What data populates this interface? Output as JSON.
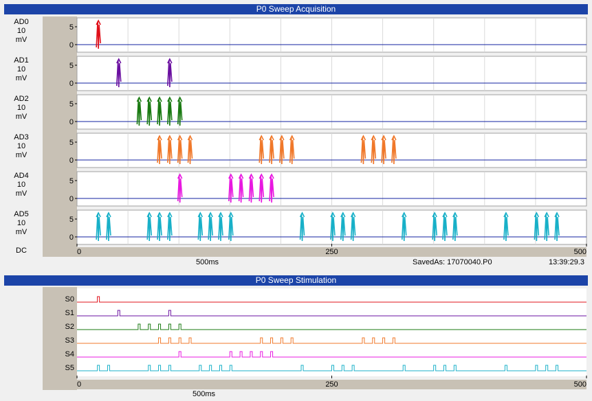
{
  "acquisition": {
    "title": "P0 Sweep Acquisition",
    "channels": [
      {
        "name": "AD0",
        "scale": "10",
        "unit": "mV",
        "color": "#e0101a"
      },
      {
        "name": "AD1",
        "scale": "10",
        "unit": "mV",
        "color": "#6a0fa0"
      },
      {
        "name": "AD2",
        "scale": "10",
        "unit": "mV",
        "color": "#1a7a12"
      },
      {
        "name": "AD3",
        "scale": "10",
        "unit": "mV",
        "color": "#f0782a"
      },
      {
        "name": "AD4",
        "scale": "10",
        "unit": "mV",
        "color": "#e818e0"
      },
      {
        "name": "AD5",
        "scale": "10",
        "unit": "mV",
        "color": "#18b0c8"
      }
    ],
    "coupling": "DC",
    "y_ticks": [
      "5",
      "0"
    ],
    "x_ticks": [
      "0",
      "250",
      "500"
    ],
    "timebase": "500",
    "timebase_unit": "ms",
    "saved_as": "SavedAs: 17070040.P0",
    "time": "13:39:29.3",
    "spikes": {
      "AD0": [
        21
      ],
      "AD1": [
        41,
        91
      ],
      "AD2": [
        61,
        71,
        81,
        91,
        101
      ],
      "AD3": [
        81,
        91,
        101,
        111,
        181,
        191,
        201,
        211,
        281,
        291,
        301,
        311
      ],
      "AD4": [
        101,
        151,
        161,
        171,
        181,
        191
      ],
      "AD5": [
        21,
        31,
        71,
        81,
        91,
        121,
        131,
        141,
        151,
        221,
        251,
        261,
        271,
        321,
        351,
        361,
        371,
        421,
        451,
        461,
        471
      ]
    }
  },
  "stimulation": {
    "title": "P0 Sweep Stimulation",
    "channels": [
      {
        "name": "S0",
        "color": "#e0101a"
      },
      {
        "name": "S1",
        "color": "#6a0fa0"
      },
      {
        "name": "S2",
        "color": "#1a7a12"
      },
      {
        "name": "S3",
        "color": "#f0782a"
      },
      {
        "name": "S4",
        "color": "#e818e0"
      },
      {
        "name": "S5",
        "color": "#18b0c8"
      }
    ],
    "x_ticks": [
      "0",
      "250",
      "500"
    ],
    "timebase": "500",
    "timebase_unit": "ms",
    "pulses": {
      "S0": [
        21
      ],
      "S1": [
        41,
        91
      ],
      "S2": [
        61,
        71,
        81,
        91,
        101
      ],
      "S3": [
        81,
        91,
        101,
        111,
        181,
        191,
        201,
        211,
        281,
        291,
        301,
        311
      ],
      "S4": [
        101,
        151,
        161,
        171,
        181,
        191
      ],
      "S5": [
        21,
        31,
        71,
        81,
        91,
        121,
        131,
        141,
        151,
        221,
        251,
        261,
        271,
        321,
        351,
        361,
        371,
        421,
        451,
        461,
        471
      ]
    }
  }
}
